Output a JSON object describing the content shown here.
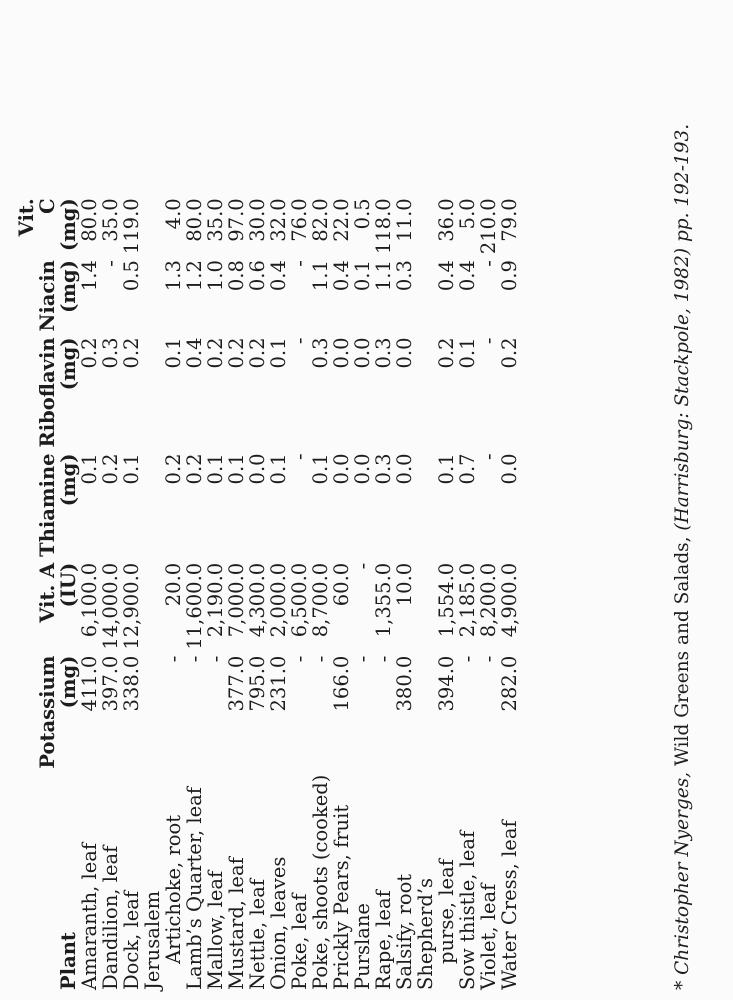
{
  "table": {
    "columns": [
      {
        "name": "Plant",
        "unit": ""
      },
      {
        "name": "Potassium",
        "unit": "(mg)"
      },
      {
        "name": "Vit. A",
        "unit": "(IU)"
      },
      {
        "name": "Thiamine",
        "unit": "(mg)"
      },
      {
        "name": "Riboflavin",
        "unit": "(mg)"
      },
      {
        "name": "Niacin",
        "unit": "(mg)"
      },
      {
        "name": "Vit. C",
        "unit": "(mg)"
      }
    ],
    "rows": [
      {
        "plant": "Amaranth, leaf",
        "indent": false,
        "values": [
          "411.0",
          "6,100.0",
          "0.1",
          "0.2",
          "1.4",
          "80.0"
        ]
      },
      {
        "plant": "Dandilion, leaf",
        "indent": false,
        "values": [
          "397.0",
          "14,000.0",
          "0.2",
          "0.3",
          "-",
          "35.0"
        ]
      },
      {
        "plant": "Dock, leaf",
        "indent": false,
        "values": [
          "338.0",
          "12,900.0",
          "0.1",
          "0.2",
          "0.5",
          "119.0"
        ]
      },
      {
        "plant": "Jerusalem",
        "indent": false,
        "values": [
          "",
          "",
          "",
          "",
          "",
          ""
        ]
      },
      {
        "plant": "Artichoke, root",
        "indent": true,
        "values": [
          "-",
          "20.0",
          "0.2",
          "0.1",
          "1.3",
          "4.0"
        ]
      },
      {
        "plant": "Lamb’s Quarter, leaf",
        "indent": false,
        "values": [
          "-",
          "11,600.0",
          "0.2",
          "0.4",
          "1.2",
          "80.0"
        ]
      },
      {
        "plant": "Mallow, leaf",
        "indent": false,
        "values": [
          "-",
          "2,190.0",
          "0.1",
          "0.2",
          "1.0",
          "35.0"
        ]
      },
      {
        "plant": "Mustard, leaf",
        "indent": false,
        "values": [
          "377.0",
          "7,000.0",
          "0.1",
          "0.2",
          "0.8",
          "97.0"
        ]
      },
      {
        "plant": "Nettle, leaf",
        "indent": false,
        "values": [
          "795.0",
          "4,300.0",
          "0.0",
          "0.2",
          "0.6",
          "30.0"
        ]
      },
      {
        "plant": "Onion, leaves",
        "indent": false,
        "values": [
          "231.0",
          "2,000.0",
          "0.1",
          "0.1",
          "0.4",
          "32.0"
        ]
      },
      {
        "plant": "Poke, leaf",
        "indent": false,
        "values": [
          "-",
          "6,500.0",
          "-",
          "-",
          "-",
          "76.0"
        ]
      },
      {
        "plant": "Poke, shoots (cooked)",
        "indent": false,
        "values": [
          "-",
          "8,700.0",
          "0.1",
          "0.3",
          "1.1",
          "82.0"
        ]
      },
      {
        "plant": "Prickly Pears, fruit",
        "indent": false,
        "values": [
          "166.0",
          "60.0",
          "0.0",
          "0.0",
          "0.4",
          "22.0"
        ]
      },
      {
        "plant": "Purslane",
        "indent": false,
        "values": [
          "-",
          "-",
          "0.0",
          "0.0",
          "0.1",
          "0.5"
        ]
      },
      {
        "plant": "Rape, leaf",
        "indent": false,
        "values": [
          "-",
          "1,355.0",
          "0.3",
          "0.3",
          "1.1",
          "118.0"
        ]
      },
      {
        "plant": "Salsify, root",
        "indent": false,
        "values": [
          "380.0",
          "10.0",
          "0.0",
          "0.0",
          "0.3",
          "11.0"
        ]
      },
      {
        "plant": "Shepherd’s",
        "indent": false,
        "values": [
          "",
          "",
          "",
          "",
          "",
          ""
        ]
      },
      {
        "plant": "purse, leaf",
        "indent": true,
        "values": [
          "394.0",
          "1,554.0",
          "0.1",
          "0.2",
          "0.4",
          "36.0"
        ]
      },
      {
        "plant": "Sow thistle, leaf",
        "indent": false,
        "values": [
          "-",
          "2,185.0",
          "0.7",
          "0.1",
          "0.4",
          "5.0"
        ]
      },
      {
        "plant": "Violet, leaf",
        "indent": false,
        "values": [
          "-",
          "8,200.0",
          "-",
          "-",
          "-",
          "210.0"
        ]
      },
      {
        "plant": "Water Cress, leaf",
        "indent": false,
        "values": [
          "282.0",
          "4,900.0",
          "0.0",
          "0.2",
          "0.9",
          "79.0"
        ]
      }
    ]
  },
  "footnote": {
    "author": "* Christopher Nyerges,",
    "title": " Wild Greens and Salads,",
    "source": " (Harrisburg: Stackpole, 1982) pp. 192-193."
  }
}
